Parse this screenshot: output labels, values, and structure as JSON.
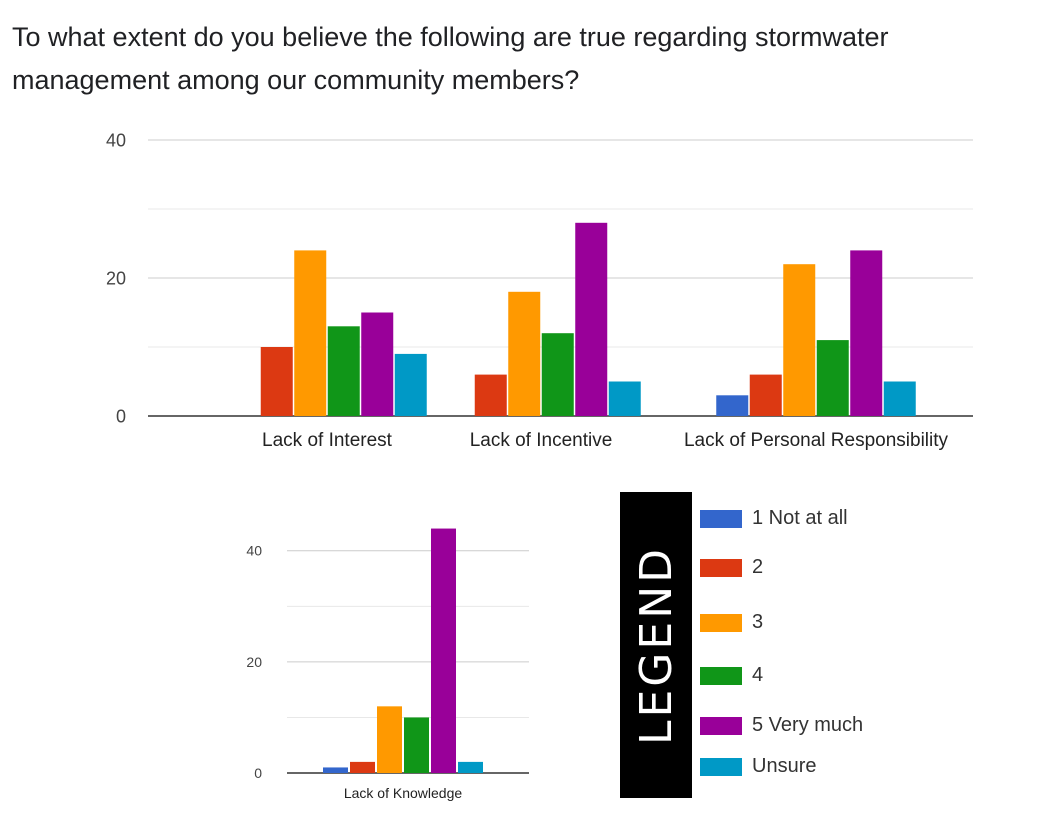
{
  "question": "To what extent do you believe the following are true regarding stormwater management among our community members?",
  "legend": {
    "title": "LEGEND",
    "items": [
      {
        "label": "1 Not at all",
        "color": "#3366cc"
      },
      {
        "label": "2",
        "color": "#dc3912"
      },
      {
        "label": "3",
        "color": "#ff9900"
      },
      {
        "label": "4",
        "color": "#109618"
      },
      {
        "label": "5 Very much",
        "color": "#990099"
      },
      {
        "label": "Unsure",
        "color": "#0099c6"
      }
    ]
  },
  "chart_data": [
    {
      "type": "bar",
      "categories": [
        "Lack of Interest",
        "Lack of Incentive",
        "Lack of Personal Responsibility"
      ],
      "series": [
        {
          "name": "1 Not at all",
          "values": [
            0,
            0,
            3
          ]
        },
        {
          "name": "2",
          "values": [
            10,
            6,
            6
          ]
        },
        {
          "name": "3",
          "values": [
            24,
            18,
            22
          ]
        },
        {
          "name": "4",
          "values": [
            13,
            12,
            11
          ]
        },
        {
          "name": "5 Very much",
          "values": [
            15,
            28,
            24
          ]
        },
        {
          "name": "Unsure",
          "values": [
            9,
            5,
            5
          ]
        }
      ],
      "yticks": [
        "0",
        "20",
        "40"
      ],
      "ylim": [
        0,
        40
      ],
      "grid": true
    },
    {
      "type": "bar",
      "categories": [
        "Lack of Knowledge"
      ],
      "series": [
        {
          "name": "1 Not at all",
          "values": [
            1
          ]
        },
        {
          "name": "2",
          "values": [
            2
          ]
        },
        {
          "name": "3",
          "values": [
            12
          ]
        },
        {
          "name": "4",
          "values": [
            10
          ]
        },
        {
          "name": "5 Very much",
          "values": [
            44
          ]
        },
        {
          "name": "Unsure",
          "values": [
            2
          ]
        }
      ],
      "yticks": [
        "0",
        "20",
        "40"
      ],
      "ylim": [
        0,
        45
      ],
      "grid": true
    }
  ]
}
